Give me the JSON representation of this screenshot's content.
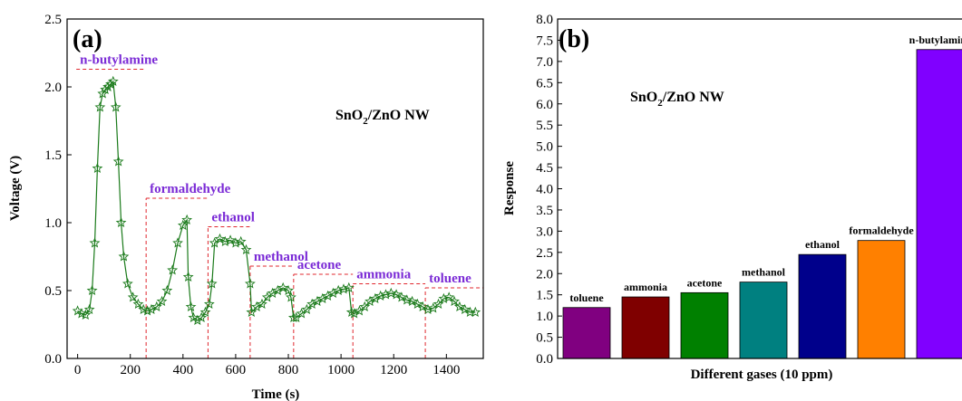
{
  "chart_data": [
    {
      "type": "line",
      "panel_label": "(a)",
      "annotation": {
        "main": "SnO",
        "sub": "2",
        "rest": "/ZnO NW"
      },
      "xlabel": "Time (s)",
      "ylabel": "Voltage (V)",
      "xlim": [
        -40,
        1540
      ],
      "ylim": [
        0.0,
        2.5
      ],
      "xticks": [
        0,
        200,
        400,
        600,
        800,
        1000,
        1200,
        1400
      ],
      "yticks": [
        0.0,
        0.5,
        1.0,
        1.5,
        2.0,
        2.5
      ],
      "ytick_labels": [
        "0.0",
        "0.5",
        "1.0",
        "1.5",
        "2.0",
        "2.5"
      ],
      "grid": false,
      "line_color": "#1a7a1a",
      "marker": "star",
      "series": [
        {
          "x": [
            0,
            15,
            30,
            45,
            55,
            65,
            75,
            85,
            95,
            105,
            115,
            125,
            135,
            145,
            155,
            165,
            175,
            190,
            210,
            230,
            250,
            265,
            280,
            300,
            320,
            340,
            360,
            380,
            400,
            415,
            420,
            430,
            440,
            455,
            470,
            485,
            500,
            510,
            520,
            540,
            560,
            580,
            600,
            620,
            640,
            655,
            660,
            680,
            700,
            720,
            740,
            760,
            780,
            800,
            810,
            820,
            830,
            850,
            870,
            890,
            910,
            930,
            950,
            970,
            990,
            1010,
            1030,
            1040,
            1050,
            1070,
            1090,
            1110,
            1130,
            1150,
            1170,
            1190,
            1210,
            1230,
            1250,
            1270,
            1290,
            1310,
            1330,
            1350,
            1370,
            1390,
            1410,
            1430,
            1450,
            1470,
            1490,
            1510
          ],
          "y": [
            0.35,
            0.33,
            0.32,
            0.36,
            0.5,
            0.85,
            1.4,
            1.85,
            1.95,
            1.98,
            2.0,
            2.02,
            2.04,
            1.85,
            1.45,
            1.0,
            0.75,
            0.55,
            0.45,
            0.4,
            0.36,
            0.35,
            0.36,
            0.38,
            0.42,
            0.5,
            0.65,
            0.85,
            0.98,
            1.02,
            0.6,
            0.38,
            0.3,
            0.28,
            0.3,
            0.34,
            0.4,
            0.55,
            0.85,
            0.88,
            0.86,
            0.87,
            0.85,
            0.86,
            0.8,
            0.55,
            0.34,
            0.38,
            0.4,
            0.45,
            0.48,
            0.5,
            0.52,
            0.5,
            0.45,
            0.3,
            0.3,
            0.33,
            0.36,
            0.4,
            0.42,
            0.44,
            0.46,
            0.48,
            0.5,
            0.51,
            0.52,
            0.34,
            0.33,
            0.35,
            0.38,
            0.42,
            0.44,
            0.46,
            0.47,
            0.48,
            0.47,
            0.45,
            0.43,
            0.42,
            0.4,
            0.38,
            0.36,
            0.37,
            0.4,
            0.44,
            0.45,
            0.42,
            0.38,
            0.36,
            0.34,
            0.34
          ]
        }
      ],
      "gas_regions": [
        {
          "label": "n-butylamine",
          "x_start": -5,
          "x_end": 260,
          "level": 2.13
        },
        {
          "label": "formaldehyde",
          "x_start": 260,
          "x_end": 495,
          "level": 1.18
        },
        {
          "label": "ethanol",
          "x_start": 495,
          "x_end": 655,
          "level": 0.97
        },
        {
          "label": "methanol",
          "x_start": 655,
          "x_end": 820,
          "level": 0.68
        },
        {
          "label": "acetone",
          "x_start": 820,
          "x_end": 1045,
          "level": 0.62
        },
        {
          "label": "ammonia",
          "x_start": 1045,
          "x_end": 1320,
          "level": 0.55
        },
        {
          "label": "toluene",
          "x_start": 1320,
          "x_end": 1540,
          "level": 0.52
        }
      ],
      "region_color": "#e0272e"
    },
    {
      "type": "bar",
      "panel_label": "(b)",
      "annotation": {
        "main": "SnO",
        "sub": "2",
        "rest": "/ZnO NW"
      },
      "xlabel": "Different gases (10 ppm)",
      "ylabel": "Response",
      "ylim": [
        0.0,
        8.0
      ],
      "yticks": [
        0.0,
        0.5,
        1.0,
        1.5,
        2.0,
        2.5,
        3.0,
        3.5,
        4.0,
        4.5,
        5.0,
        5.5,
        6.0,
        6.5,
        7.0,
        7.5,
        8.0
      ],
      "ytick_labels": [
        "0.0",
        "0.5",
        "1.0",
        "1.5",
        "2.0",
        "2.5",
        "3.0",
        "3.5",
        "4.0",
        "4.5",
        "5.0",
        "5.5",
        "6.0",
        "6.5",
        "7.0",
        "7.5",
        "8.0"
      ],
      "grid": false,
      "categories": [
        "toluene",
        "ammonia",
        "acetone",
        "methanol",
        "ethanol",
        "formaldehyde",
        "n-butylamine"
      ],
      "values": [
        1.2,
        1.45,
        1.55,
        1.8,
        2.45,
        2.78,
        7.28
      ],
      "colors": [
        "#800080",
        "#7f0000",
        "#008000",
        "#008080",
        "#00008b",
        "#ff8000",
        "#8000ff"
      ]
    }
  ]
}
